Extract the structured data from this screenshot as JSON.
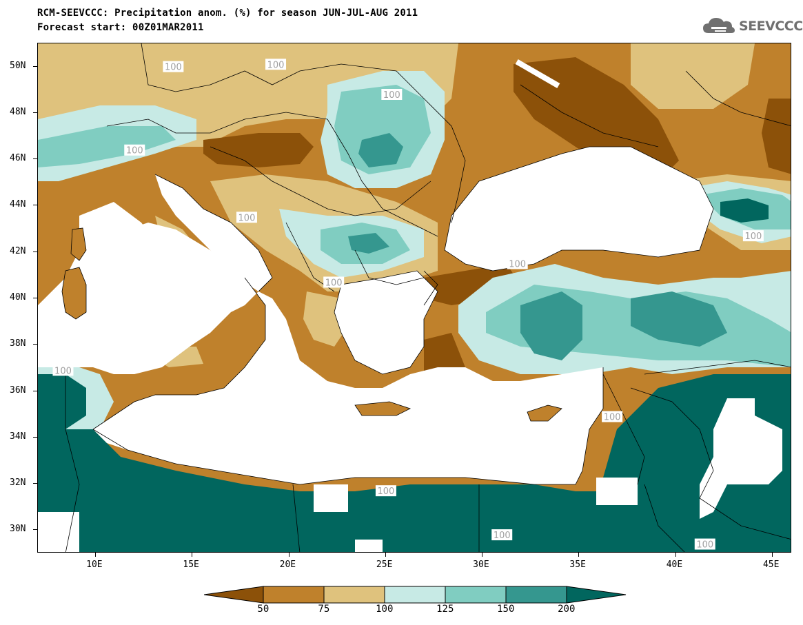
{
  "title": {
    "line1": "RCM-SEEVCCC: Precipitation anom. (%) for season JUN-JUL-AUG 2011",
    "line2": "Forecast start: 00Z01MAR2011"
  },
  "logo": {
    "text": "SEEVCCC",
    "icon": "cloud-icon"
  },
  "map": {
    "lon_range": [
      7,
      46
    ],
    "lat_range": [
      29,
      51
    ],
    "x_ticks": [
      {
        "value": 10,
        "label": "10E"
      },
      {
        "value": 15,
        "label": "15E"
      },
      {
        "value": 20,
        "label": "20E"
      },
      {
        "value": 25,
        "label": "25E"
      },
      {
        "value": 30,
        "label": "30E"
      },
      {
        "value": 35,
        "label": "35E"
      },
      {
        "value": 40,
        "label": "40E"
      },
      {
        "value": 45,
        "label": "45E"
      }
    ],
    "y_ticks": [
      {
        "value": 50,
        "label": "50N"
      },
      {
        "value": 48,
        "label": "48N"
      },
      {
        "value": 46,
        "label": "46N"
      },
      {
        "value": 44,
        "label": "44N"
      },
      {
        "value": 42,
        "label": "42N"
      },
      {
        "value": 40,
        "label": "40N"
      },
      {
        "value": 38,
        "label": "38N"
      },
      {
        "value": 36,
        "label": "36N"
      },
      {
        "value": 34,
        "label": "34N"
      },
      {
        "value": 32,
        "label": "32N"
      },
      {
        "value": 30,
        "label": "30N"
      }
    ],
    "contour_labels": [
      {
        "text": "100",
        "lon": 14.0,
        "lat": 50.0
      },
      {
        "text": "100",
        "lon": 19.3,
        "lat": 50.1
      },
      {
        "text": "100",
        "lon": 25.3,
        "lat": 48.8
      },
      {
        "text": "100",
        "lon": 12.0,
        "lat": 46.4
      },
      {
        "text": "100",
        "lon": 17.8,
        "lat": 43.5
      },
      {
        "text": "100",
        "lon": 22.3,
        "lat": 40.7
      },
      {
        "text": "100",
        "lon": 31.8,
        "lat": 41.5
      },
      {
        "text": "100",
        "lon": 44.0,
        "lat": 42.7
      },
      {
        "text": "100",
        "lon": 8.3,
        "lat": 36.9
      },
      {
        "text": "100",
        "lon": 36.7,
        "lat": 34.9
      },
      {
        "text": "100",
        "lon": 25.0,
        "lat": 31.7
      },
      {
        "text": "100",
        "lon": 31.0,
        "lat": 29.8
      },
      {
        "text": "100",
        "lon": 41.5,
        "lat": 29.4
      }
    ]
  },
  "colorbar": {
    "labels": [
      "50",
      "75",
      "100",
      "125",
      "150",
      "200"
    ],
    "colors": [
      "#8c5109",
      "#bf812c",
      "#dfc27d",
      "#c7eae5",
      "#80cdc1",
      "#35978f",
      "#01665e"
    ]
  },
  "colors": {
    "sea": "#ffffff",
    "border": "#000000",
    "contour_100": "#a0a0a0"
  }
}
